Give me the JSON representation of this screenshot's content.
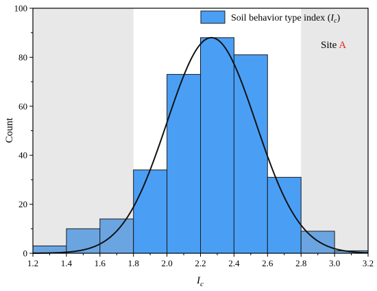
{
  "chart_data": {
    "type": "bar",
    "bin_edges": [
      1.2,
      1.4,
      1.6,
      1.8,
      2.0,
      2.2,
      2.4,
      2.6,
      2.8,
      3.0,
      3.2
    ],
    "values": [
      3,
      10,
      14,
      34,
      73,
      88,
      81,
      31,
      9,
      1
    ],
    "xlim": [
      1.2,
      3.2
    ],
    "ylim": [
      0,
      100
    ],
    "x_ticks": [
      1.2,
      1.4,
      1.6,
      1.8,
      2.0,
      2.2,
      2.4,
      2.6,
      2.8,
      3.0,
      3.2
    ],
    "x_tick_labels": [
      "1.2",
      "1.4",
      "1.6",
      "1.8",
      "2.0",
      "2.2",
      "2.4",
      "2.6",
      "2.8",
      "3.0",
      "3.2"
    ],
    "y_ticks": [
      0,
      20,
      40,
      60,
      80,
      100
    ],
    "y_tick_labels": [
      "0",
      "20",
      "40",
      "60",
      "80",
      "100"
    ],
    "xlabel_main": "I",
    "xlabel_sub": "c",
    "ylabel": "Count",
    "legend": {
      "text_prefix": "Soil behavior type index (",
      "text_italic": "I",
      "text_sub": "c",
      "text_suffix": ")",
      "placement": "top-right"
    },
    "annotation": {
      "prefix": "Site ",
      "highlight": "A",
      "highlight_color": "#e8211c"
    },
    "shaded_x_ranges": [
      [
        1.2,
        1.8
      ],
      [
        2.8,
        3.2
      ]
    ],
    "fit_curve": {
      "type": "normal",
      "mean": 2.265,
      "sd": 0.265,
      "peak": 88
    },
    "colors": {
      "bar_fill": "#4a9ff5",
      "bar_fill_shaded": "#6aa5e2",
      "bar_stroke": "#1a1a1a",
      "shade": "#e8e8e8",
      "curve": "#111111"
    }
  }
}
